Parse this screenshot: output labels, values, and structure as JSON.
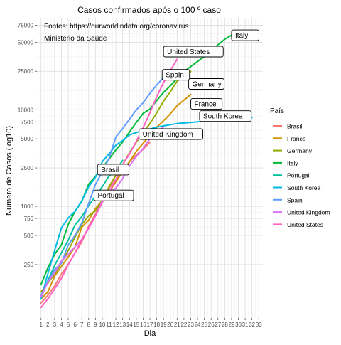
{
  "chart_data": {
    "type": "line",
    "title": "Casos confirmados após o 100 º caso",
    "annotation": [
      "Fontes: https://ourworldindata.org/coronavirus",
      "Ministério da Saúde"
    ],
    "xlabel": "Dia",
    "ylabel": "Número de Casos (log10)",
    "x_scale": "linear",
    "y_scale": "log10",
    "xlim": [
      1,
      33
    ],
    "ylim": [
      75,
      75000
    ],
    "grid": true,
    "x_ticks": [
      1,
      2,
      3,
      4,
      5,
      6,
      7,
      8,
      9,
      10,
      11,
      12,
      13,
      14,
      15,
      16,
      17,
      18,
      19,
      20,
      21,
      22,
      23,
      24,
      25,
      26,
      27,
      28,
      29,
      30,
      31,
      32,
      33
    ],
    "y_ticks": [
      250,
      500,
      750,
      1000,
      2500,
      5000,
      7500,
      10000,
      25000,
      50000,
      75000
    ],
    "y_tick_labels": [
      "250",
      "500",
      "750",
      "1000",
      "2500",
      "5000",
      "7500",
      "10000",
      "25000",
      "50000",
      "75000"
    ],
    "legend": {
      "title": "País",
      "position": "right"
    },
    "series": [
      {
        "name": "Brasil",
        "color": "#F8766D",
        "x": [
          1,
          2,
          3,
          4,
          5,
          6,
          7,
          8,
          9,
          10,
          11,
          12,
          13,
          14,
          15,
          16,
          17
        ],
        "y": [
          100,
          120,
          150,
          200,
          250,
          330,
          430,
          620,
          830,
          1150,
          1550,
          1900,
          2400,
          2900,
          3400,
          3900,
          4600
        ]
      },
      {
        "name": "France",
        "color": "#D39200",
        "x": [
          1,
          2,
          3,
          4,
          5,
          6,
          7,
          8,
          9,
          10,
          11,
          12,
          13,
          14,
          15,
          16,
          17,
          18,
          19,
          20,
          21,
          22,
          23
        ],
        "y": [
          110,
          130,
          190,
          240,
          300,
          380,
          610,
          720,
          950,
          1150,
          1400,
          1800,
          2300,
          2900,
          3700,
          4500,
          5400,
          6600,
          7700,
          9100,
          11000,
          12600,
          14400
        ]
      },
      {
        "name": "Germany",
        "color": "#93AA00",
        "x": [
          1,
          2,
          3,
          4,
          5,
          6,
          7,
          8,
          9,
          10,
          11,
          12,
          13,
          14,
          15,
          16,
          17,
          18,
          19,
          20,
          21,
          22,
          23
        ],
        "y": [
          130,
          160,
          200,
          260,
          350,
          480,
          650,
          800,
          900,
          1150,
          1600,
          2100,
          2700,
          3600,
          4600,
          5800,
          7200,
          9300,
          12300,
          15300,
          19800,
          22300,
          24900
        ]
      },
      {
        "name": "Italy",
        "color": "#00BA38",
        "x": [
          1,
          2,
          3,
          4,
          5,
          6,
          7,
          8,
          9,
          10,
          11,
          12,
          13,
          14,
          15,
          16,
          17,
          18,
          19,
          20,
          21,
          22,
          23,
          24,
          25,
          26,
          27,
          28,
          29
        ],
        "y": [
          155,
          230,
          320,
          400,
          650,
          890,
          1130,
          1700,
          2050,
          2500,
          3090,
          3850,
          4640,
          5880,
          7380,
          9170,
          10150,
          12460,
          15110,
          17660,
          21150,
          24750,
          27980,
          31500,
          35700,
          41000,
          47000,
          53600,
          59100
        ]
      },
      {
        "name": "Portugal",
        "color": "#00C19F",
        "x": [
          1,
          2,
          3,
          4,
          5,
          6,
          7,
          8,
          9,
          10,
          11,
          12,
          13
        ],
        "y": [
          112,
          169,
          245,
          331,
          448,
          642,
          785,
          1020,
          1280,
          1600,
          2060,
          2362,
          2995
        ]
      },
      {
        "name": "South Korea",
        "color": "#00B9E3",
        "x": [
          1,
          2,
          3,
          4,
          5,
          6,
          7,
          8,
          9,
          10,
          11,
          12,
          13,
          14,
          15,
          16,
          17,
          18,
          19,
          20,
          21,
          22,
          23,
          24,
          25,
          26,
          27,
          28,
          29,
          30,
          31,
          32
        ],
        "y": [
          110,
          200,
          350,
          600,
          760,
          890,
          1140,
          1600,
          2000,
          2900,
          3500,
          4300,
          4800,
          5500,
          5800,
          6100,
          6300,
          6600,
          6800,
          7000,
          7200,
          7300,
          7400,
          7500,
          7600,
          7700,
          7800,
          7900,
          8000,
          8100,
          8200,
          8300
        ]
      },
      {
        "name": "Spain",
        "color": "#619CFF",
        "x": [
          1,
          2,
          3,
          4,
          5,
          6,
          7,
          8,
          9,
          10,
          11,
          12,
          13,
          14,
          15,
          16,
          17,
          18,
          19,
          20
        ],
        "y": [
          120,
          165,
          222,
          259,
          400,
          500,
          673,
          1073,
          1695,
          2277,
          3146,
          5232,
          6391,
          7988,
          9942,
          11826,
          14769,
          18077,
          21571,
          25496
        ]
      },
      {
        "name": "United Kingdom",
        "color": "#DB72FB",
        "x": [
          1,
          2,
          3,
          4,
          5,
          6,
          7,
          8,
          9,
          10,
          11,
          12,
          13,
          14,
          15,
          16,
          17,
          18,
          19
        ],
        "y": [
          115,
          163,
          206,
          273,
          321,
          382,
          456,
          590,
          798,
          1140,
          1391,
          1543,
          1950,
          2626,
          3269,
          3983,
          5018,
          5683,
          6650
        ]
      },
      {
        "name": "United States",
        "color": "#FF61C3",
        "x": [
          1,
          2,
          3,
          4,
          5,
          6,
          7,
          8,
          9,
          10,
          11,
          12,
          13,
          14,
          15,
          16,
          17,
          18,
          19,
          20,
          21
        ],
        "y": [
          90,
          110,
          140,
          180,
          250,
          330,
          450,
          600,
          800,
          1100,
          1400,
          1900,
          2700,
          3500,
          4700,
          6500,
          9300,
          13700,
          19100,
          25500,
          33300
        ]
      }
    ],
    "callouts": [
      {
        "text": "Italy",
        "x": 29,
        "y": 59000
      },
      {
        "text": "United States",
        "x": 19,
        "y": 40000
      },
      {
        "text": "Spain",
        "x": 18.8,
        "y": 23000
      },
      {
        "text": "Germany",
        "x": 22.7,
        "y": 18500
      },
      {
        "text": "France",
        "x": 23,
        "y": 11500
      },
      {
        "text": "South Korea",
        "x": 24.3,
        "y": 8600
      },
      {
        "text": "United Kingdom",
        "x": 15.4,
        "y": 5600
      },
      {
        "text": "Brasil",
        "x": 9.3,
        "y": 2400
      },
      {
        "text": "Portugal",
        "x": 8.8,
        "y": 1300
      }
    ]
  }
}
